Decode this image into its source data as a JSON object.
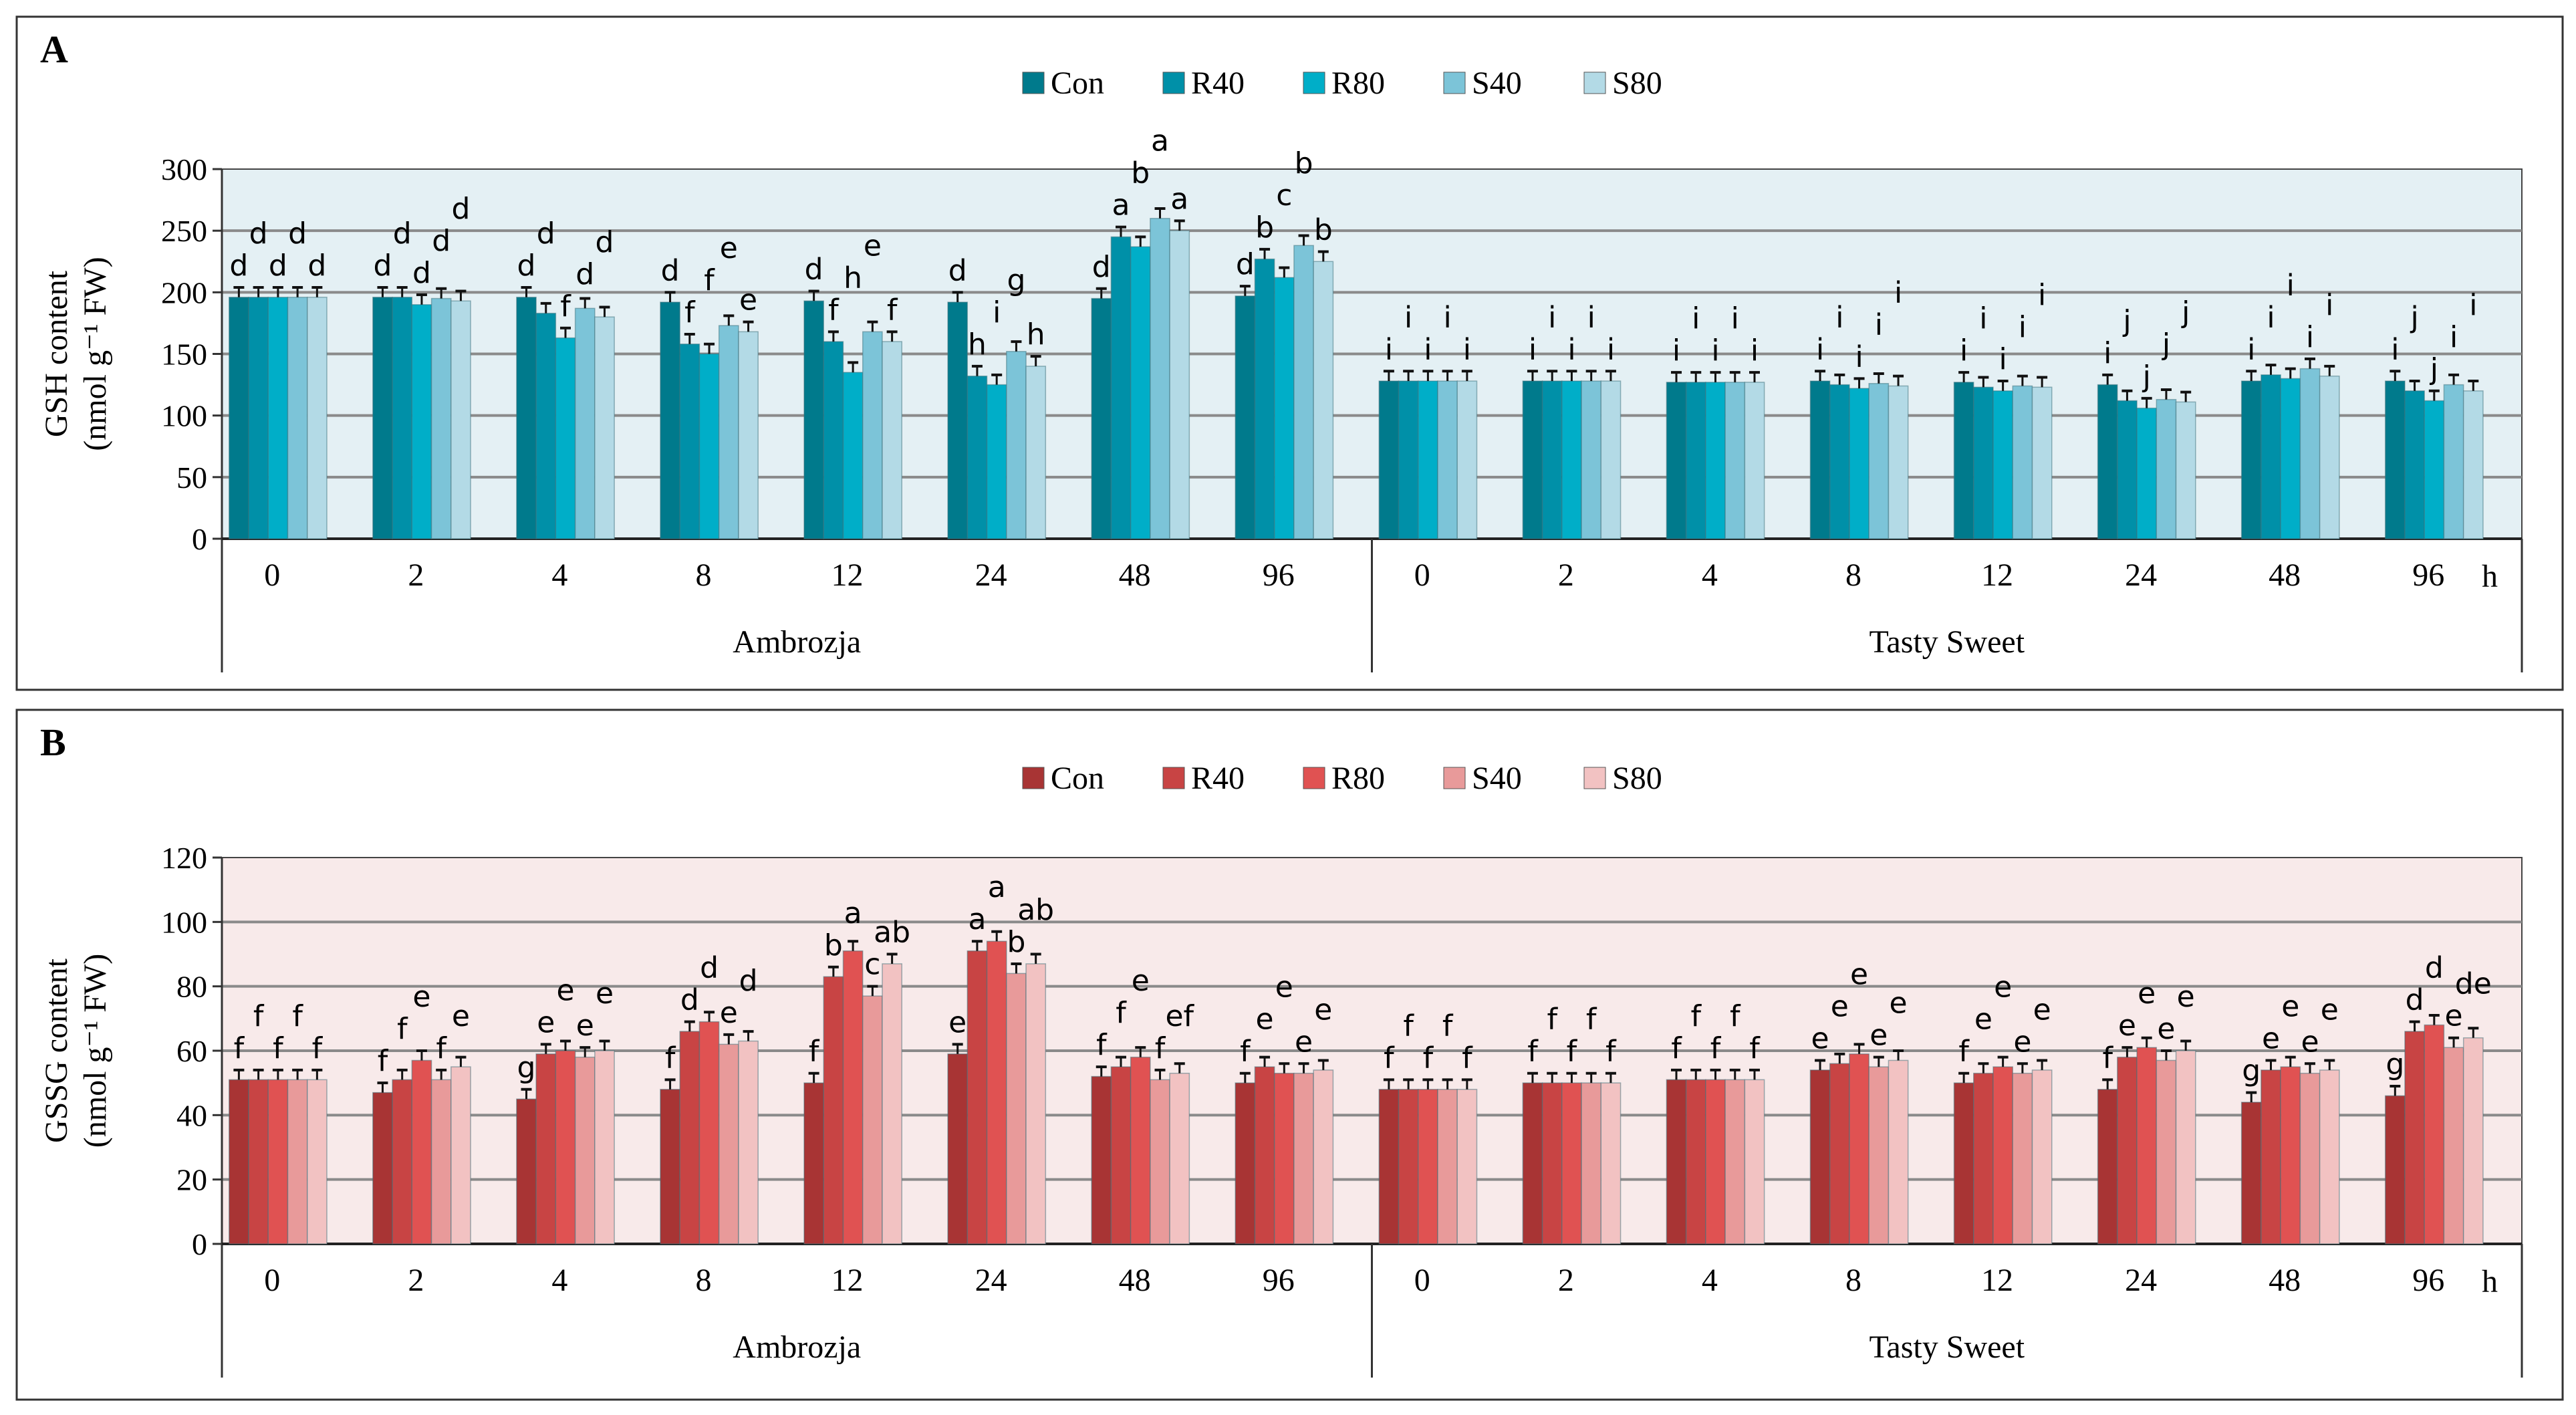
{
  "chart_data": [
    {
      "type": "bar",
      "panel": "A",
      "ylabel": "GSH content",
      "ylabel_unit": "(nmol g⁻¹ FW)",
      "ylim": [
        0,
        300
      ],
      "yticks": [
        0,
        50,
        100,
        150,
        200,
        250,
        300
      ],
      "grid": true,
      "legend_position": "top-center",
      "categories": [
        "0",
        "2",
        "4",
        "8",
        "12",
        "24",
        "48",
        "96",
        "0",
        "2",
        "4",
        "8",
        "12",
        "24",
        "48",
        "96"
      ],
      "x_unit": "h",
      "groups": [
        {
          "name": "Ambrozja",
          "span": [
            0,
            7
          ]
        },
        {
          "name": "Tasty Sweet",
          "span": [
            8,
            15
          ]
        }
      ],
      "colors": [
        "#007a8c",
        "#0090a8",
        "#00aec8",
        "#7cc4d8",
        "#b3dae6"
      ],
      "background": "#e4f0f4",
      "error": 8,
      "series": [
        {
          "name": "Con",
          "values": [
            196,
            196,
            196,
            192,
            193,
            192,
            195,
            197,
            128,
            128,
            127,
            128,
            127,
            125,
            128,
            128
          ],
          "letters": [
            "d",
            "d",
            "d",
            "d",
            "d",
            "d",
            "d",
            "d",
            "i",
            "i",
            "i",
            "i",
            "i",
            "i",
            "i",
            "i"
          ]
        },
        {
          "name": "R40",
          "values": [
            196,
            196,
            183,
            158,
            160,
            132,
            245,
            227,
            128,
            128,
            127,
            125,
            123,
            112,
            133,
            120
          ],
          "letters": [
            "d",
            "d",
            "d",
            "f",
            "f",
            "h",
            "a",
            "b",
            "i",
            "i",
            "i",
            "i",
            "i",
            "j",
            "i",
            "j"
          ]
        },
        {
          "name": "R80",
          "values": [
            196,
            190,
            163,
            150,
            135,
            125,
            237,
            212,
            128,
            128,
            127,
            122,
            120,
            106,
            130,
            112
          ],
          "letters": [
            "d",
            "d",
            "f",
            "f",
            "h",
            "i",
            "b",
            "c",
            "i",
            "i",
            "i",
            "i",
            "i",
            "j",
            "i",
            "j"
          ]
        },
        {
          "name": "S40",
          "values": [
            196,
            195,
            187,
            173,
            168,
            152,
            260,
            238,
            128,
            128,
            127,
            126,
            124,
            113,
            138,
            125
          ],
          "letters": [
            "d",
            "d",
            "d",
            "e",
            "e",
            "g",
            "a",
            "b",
            "i",
            "i",
            "i",
            "i",
            "i",
            "j",
            "i",
            "i"
          ]
        },
        {
          "name": "S80",
          "values": [
            196,
            193,
            180,
            168,
            160,
            140,
            250,
            225,
            128,
            128,
            127,
            124,
            123,
            111,
            132,
            120
          ],
          "letters": [
            "d",
            "d",
            "d",
            "e",
            "f",
            "h",
            "a",
            "b",
            "i",
            "i",
            "i",
            "i",
            "i",
            "j",
            "i",
            "i"
          ]
        }
      ]
    },
    {
      "type": "bar",
      "panel": "B",
      "ylabel": "GSSG content",
      "ylabel_unit": "(nmol g⁻¹ FW)",
      "ylim": [
        0,
        120
      ],
      "yticks": [
        0,
        20,
        40,
        60,
        80,
        100,
        120
      ],
      "grid": true,
      "legend_position": "top-center",
      "categories": [
        "0",
        "2",
        "4",
        "8",
        "12",
        "24",
        "48",
        "96",
        "0",
        "2",
        "4",
        "8",
        "12",
        "24",
        "48",
        "96"
      ],
      "x_unit": "h",
      "groups": [
        {
          "name": "Ambrozja",
          "span": [
            0,
            7
          ]
        },
        {
          "name": "Tasty Sweet",
          "span": [
            8,
            15
          ]
        }
      ],
      "colors": [
        "#a83434",
        "#c84444",
        "#e05252",
        "#e89a9a",
        "#f2c2c2"
      ],
      "background": "#f8eaea",
      "error": 3,
      "series": [
        {
          "name": "Con",
          "values": [
            51,
            47,
            45,
            48,
            50,
            59,
            52,
            50,
            48,
            50,
            51,
            54,
            50,
            48,
            44,
            46
          ],
          "letters": [
            "f",
            "f",
            "g",
            "f",
            "f",
            "e",
            "f",
            "f",
            "f",
            "f",
            "f",
            "e",
            "f",
            "f",
            "g",
            "g"
          ]
        },
        {
          "name": "R40",
          "values": [
            51,
            51,
            59,
            66,
            83,
            91,
            55,
            55,
            48,
            50,
            51,
            56,
            53,
            58,
            54,
            66
          ],
          "letters": [
            "f",
            "f",
            "e",
            "d",
            "b",
            "a",
            "f",
            "e",
            "f",
            "f",
            "f",
            "e",
            "e",
            "e",
            "e",
            "d"
          ]
        },
        {
          "name": "R80",
          "values": [
            51,
            57,
            60,
            69,
            91,
            94,
            58,
            53,
            48,
            50,
            51,
            59,
            55,
            61,
            55,
            68
          ],
          "letters": [
            "f",
            "e",
            "e",
            "d",
            "a",
            "a",
            "e",
            "e",
            "f",
            "f",
            "f",
            "e",
            "e",
            "e",
            "e",
            "d"
          ]
        },
        {
          "name": "S40",
          "values": [
            51,
            51,
            58,
            62,
            77,
            84,
            51,
            53,
            48,
            50,
            51,
            55,
            53,
            57,
            53,
            61
          ],
          "letters": [
            "f",
            "f",
            "e",
            "e",
            "c",
            "b",
            "f",
            "e",
            "f",
            "f",
            "f",
            "e",
            "e",
            "e",
            "e",
            "e"
          ]
        },
        {
          "name": "S80",
          "values": [
            51,
            55,
            60,
            63,
            87,
            87,
            53,
            54,
            48,
            50,
            51,
            57,
            54,
            60,
            54,
            64
          ],
          "letters": [
            "f",
            "e",
            "e",
            "d",
            "ab",
            "ab",
            "ef",
            "e",
            "f",
            "f",
            "f",
            "e",
            "e",
            "e",
            "e",
            "de"
          ]
        }
      ]
    }
  ]
}
